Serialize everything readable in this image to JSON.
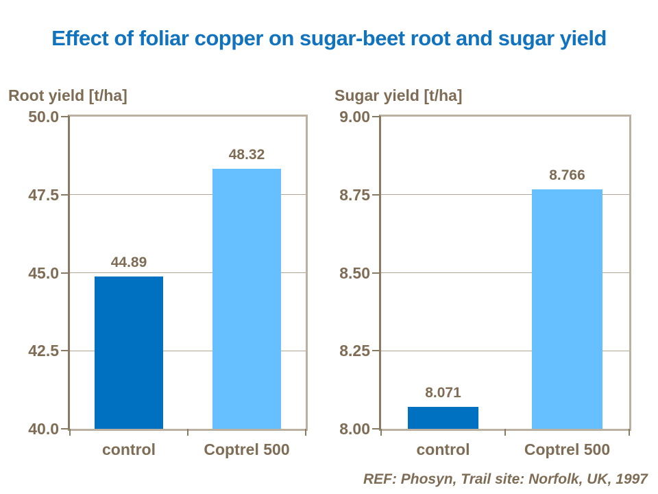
{
  "page": {
    "title": "Effect of foliar copper on sugar-beet root and sugar yield",
    "footer_ref": "REF: Phosyn, Trail site: Norfolk, UK, 1997"
  },
  "colors": {
    "title_text": "#1173BD",
    "axis_text": "#7E6C55",
    "control_bar": "#0070C0",
    "coptrel_bar": "#66BFFF",
    "frame": "#BCB0A0",
    "axis_line": "#897A63",
    "gridline": "#B0A494",
    "background": "#FFFFFF"
  },
  "chart_data": [
    {
      "type": "bar",
      "title": "Root yield [t/ha]",
      "categories": [
        "control",
        "Coptrel 500"
      ],
      "values": [
        44.89,
        48.32
      ],
      "value_labels": [
        "44.89",
        "48.32"
      ],
      "bar_colors": [
        "#0070C0",
        "#66BFFF"
      ],
      "xlabel": "",
      "ylabel": "Root yield [t/ha]",
      "ylim": [
        40.0,
        50.0
      ],
      "yticks": [
        {
          "value": 50.0,
          "label": "50.0"
        },
        {
          "value": 47.5,
          "label": "47.5"
        },
        {
          "value": 45.0,
          "label": "45.0"
        },
        {
          "value": 42.5,
          "label": "42.5"
        },
        {
          "value": 40.0,
          "label": "40.0"
        }
      ],
      "grid": true,
      "legend": "none"
    },
    {
      "type": "bar",
      "title": "Sugar yield [t/ha]",
      "categories": [
        "control",
        "Coptrel 500"
      ],
      "values": [
        8.071,
        8.766
      ],
      "value_labels": [
        "8.071",
        "8.766"
      ],
      "bar_colors": [
        "#0070C0",
        "#66BFFF"
      ],
      "xlabel": "",
      "ylabel": "Sugar yield [t/ha]",
      "ylim": [
        8.0,
        9.0
      ],
      "yticks": [
        {
          "value": 9.0,
          "label": "9.00"
        },
        {
          "value": 8.75,
          "label": "8.75"
        },
        {
          "value": 8.5,
          "label": "8.50"
        },
        {
          "value": 8.25,
          "label": "8.25"
        },
        {
          "value": 8.0,
          "label": "8.00"
        }
      ],
      "grid": true,
      "legend": "none"
    }
  ]
}
